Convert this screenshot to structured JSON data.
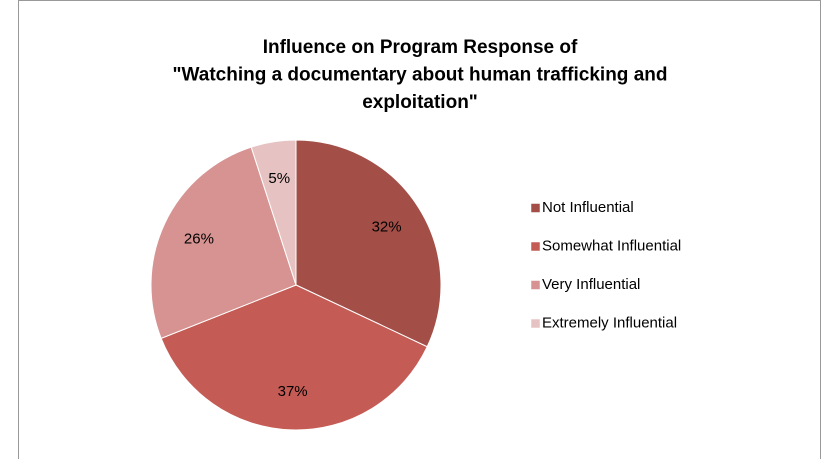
{
  "chart_data": {
    "type": "pie",
    "title": [
      "Influence on Program Response of",
      "\"Watching a documentary about human trafficking and",
      "exploitation\""
    ],
    "categories": [
      "Not Influential",
      "Somewhat Influential",
      "Very Influential",
      "Extremely Influential"
    ],
    "values": [
      32,
      37,
      26,
      5
    ],
    "value_labels": [
      "32%",
      "37%",
      "26%",
      "5%"
    ],
    "colors": [
      "#a34f48",
      "#c45b55",
      "#d69391",
      "#e6c3c2"
    ],
    "legend": "right"
  }
}
